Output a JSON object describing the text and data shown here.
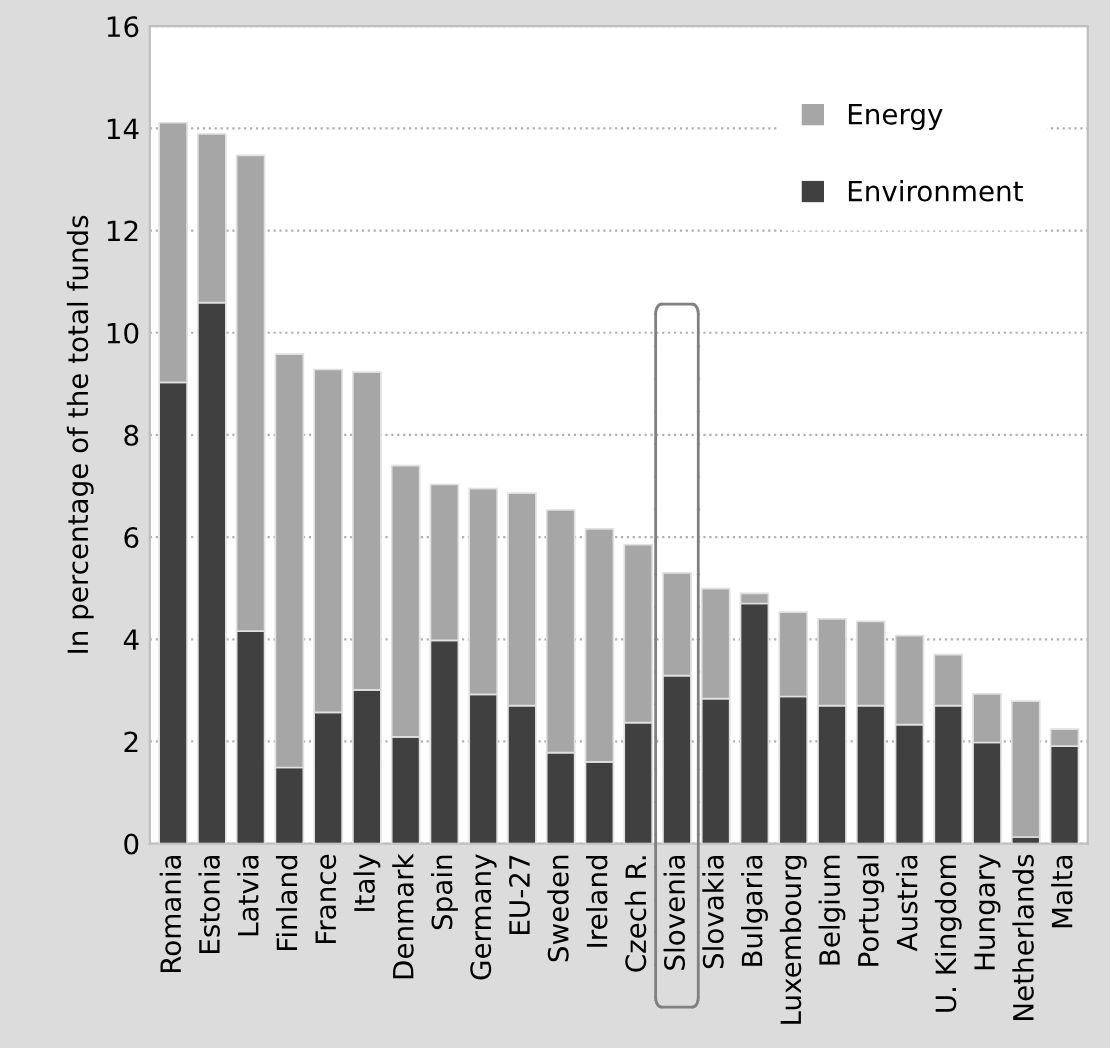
{
  "chart_data": {
    "type": "bar",
    "stacked": true,
    "ylabel": "In percentage of the total funds",
    "categories": [
      "Romania",
      "Estonia",
      "Latvia",
      "Finland",
      "France",
      "Italy",
      "Denmark",
      "Spain",
      "Germany",
      "EU-27",
      "Sweden",
      "Ireland",
      "Czech R.",
      "Slovenia",
      "Slovakia",
      "Bulgaria",
      "Luxembourg",
      "Belgium",
      "Portugal",
      "Austria",
      "U. Kingdom",
      "Hungary",
      "Netherlands",
      "Malta"
    ],
    "series": [
      {
        "name": "Environment",
        "color": "#404040",
        "values": [
          9.03,
          10.59,
          4.16,
          1.49,
          2.57,
          3.01,
          2.09,
          3.98,
          2.92,
          2.7,
          1.78,
          1.6,
          2.37,
          3.29,
          2.84,
          4.7,
          2.88,
          2.7,
          2.7,
          2.33,
          2.7,
          1.98,
          0.13,
          1.91
        ]
      },
      {
        "name": "Energy",
        "color": "#a6a6a6",
        "values": [
          5.08,
          3.3,
          9.31,
          8.09,
          6.71,
          6.22,
          5.31,
          3.05,
          4.03,
          4.16,
          4.75,
          4.56,
          3.48,
          2.01,
          2.15,
          0.2,
          1.65,
          1.7,
          1.65,
          1.74,
          1.0,
          0.95,
          2.66,
          0.33
        ]
      }
    ],
    "ylim": [
      0,
      16
    ],
    "yticks": [
      0,
      2,
      4,
      6,
      8,
      10,
      12,
      14,
      16
    ],
    "grid": "y",
    "legend": "top right"
  }
}
